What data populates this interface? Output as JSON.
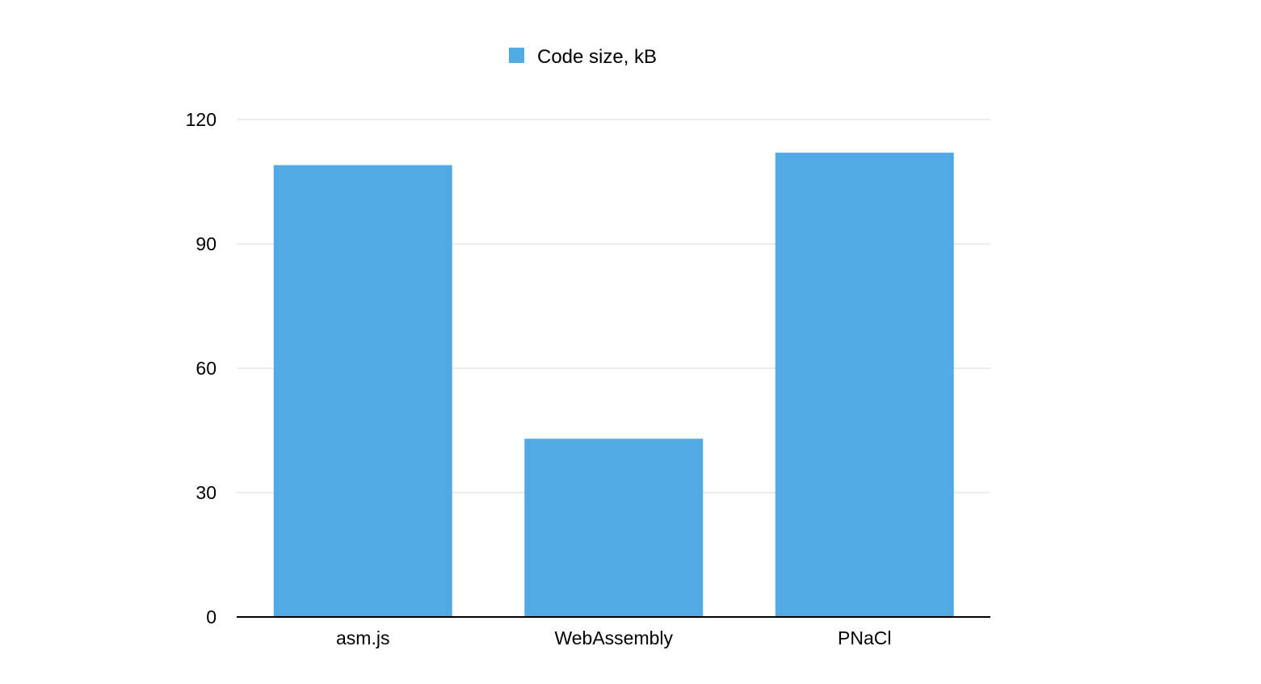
{
  "chart_data": {
    "type": "bar",
    "title": "",
    "xlabel": "",
    "ylabel": "",
    "categories": [
      "asm.js",
      "WebAssembly",
      "PNaCl"
    ],
    "series": [
      {
        "name": "Code size, kB",
        "values": [
          109,
          43,
          112
        ],
        "color": "#52aae5"
      }
    ],
    "ylim": [
      0,
      120
    ],
    "yticks": [
      0,
      30,
      60,
      90,
      120
    ],
    "grid": true,
    "legend_position": "top-center"
  }
}
